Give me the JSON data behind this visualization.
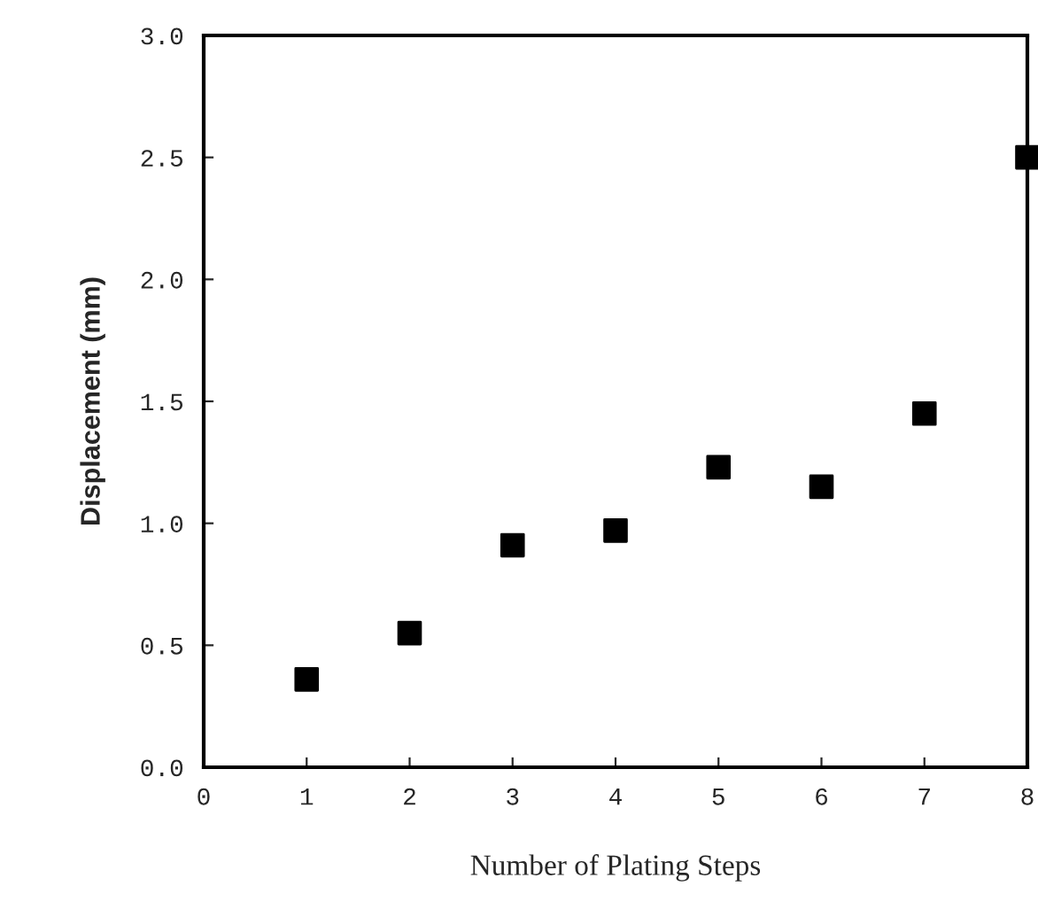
{
  "chart_data": {
    "type": "scatter",
    "xlabel": "Number of Plating Steps",
    "ylabel": "Displacement (mm)",
    "x": [
      1,
      2,
      3,
      4,
      5,
      6,
      7,
      8
    ],
    "values": [
      0.36,
      0.55,
      0.91,
      0.97,
      1.23,
      1.15,
      1.45,
      2.5
    ],
    "color": "#000000",
    "marker": "square",
    "xlim": [
      0,
      8
    ],
    "ylim": [
      0,
      3
    ],
    "xticks": [
      0,
      1,
      2,
      3,
      4,
      5,
      6,
      7,
      8
    ],
    "yticks": [
      {
        "value": 0,
        "label": "0.0"
      },
      {
        "value": 0.5,
        "label": "0.5"
      },
      {
        "value": 1,
        "label": "1.0"
      },
      {
        "value": 1.5,
        "label": "1.5"
      },
      {
        "value": 2,
        "label": "2.0"
      },
      {
        "value": 2.5,
        "label": "2.5"
      },
      {
        "value": 3,
        "label": "3.0"
      }
    ],
    "grid": false,
    "legend": false
  }
}
